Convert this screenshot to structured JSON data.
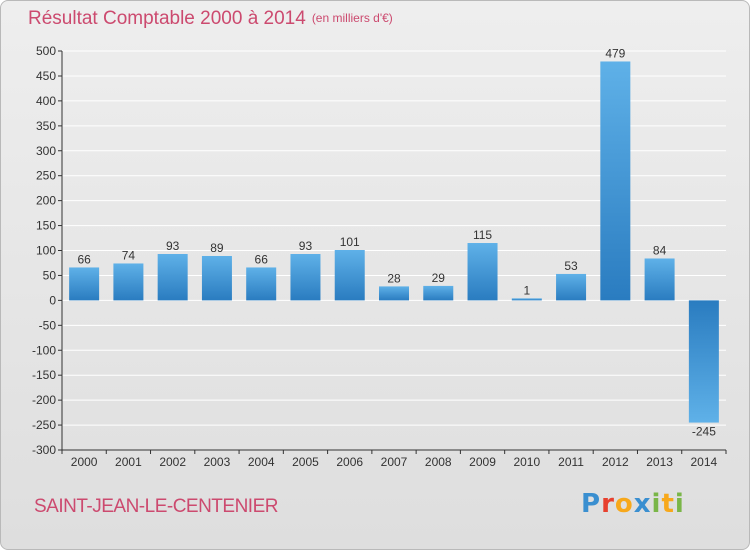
{
  "header": {
    "title": "Résultat Comptable 2000 à 2014",
    "unit": "(en milliers d'€)"
  },
  "footer": {
    "commune": "SAINT-JEAN-LE-CENTENIER",
    "logo_text": "Proxiti",
    "logo_letters": [
      {
        "ch": "P",
        "color": "#3a8fd0"
      },
      {
        "ch": "r",
        "color": "#e7402e"
      },
      {
        "ch": "o",
        "color": "#f7a81b"
      },
      {
        "ch": "x",
        "color": "#3a8fd0"
      },
      {
        "ch": "i",
        "color": "#7ab648"
      },
      {
        "ch": "t",
        "color": "#f7a81b"
      },
      {
        "ch": "i",
        "color": "#7ab648"
      }
    ]
  },
  "colors": {
    "title": "#cc4a6f",
    "bar_light": "#5fb1e8",
    "bar_dark": "#2a7cc0",
    "grid": "#ffffff",
    "axis": "#333333"
  },
  "chart_data": {
    "type": "bar",
    "title": "Résultat Comptable 2000 à 2014",
    "subtitle": "(en milliers d'€)",
    "xlabel": "",
    "ylabel": "",
    "categories": [
      "2000",
      "2001",
      "2002",
      "2003",
      "2004",
      "2005",
      "2006",
      "2007",
      "2008",
      "2009",
      "2010",
      "2011",
      "2012",
      "2013",
      "2014"
    ],
    "values": [
      66,
      74,
      93,
      89,
      66,
      93,
      101,
      28,
      29,
      115,
      1,
      53,
      479,
      84,
      -245
    ],
    "ylim": [
      -300,
      500
    ],
    "yticks": [
      500,
      450,
      400,
      350,
      300,
      250,
      200,
      150,
      100,
      50,
      0,
      -50,
      -100,
      -150,
      -200,
      -250,
      -300
    ],
    "grid": true,
    "legend": "none"
  }
}
